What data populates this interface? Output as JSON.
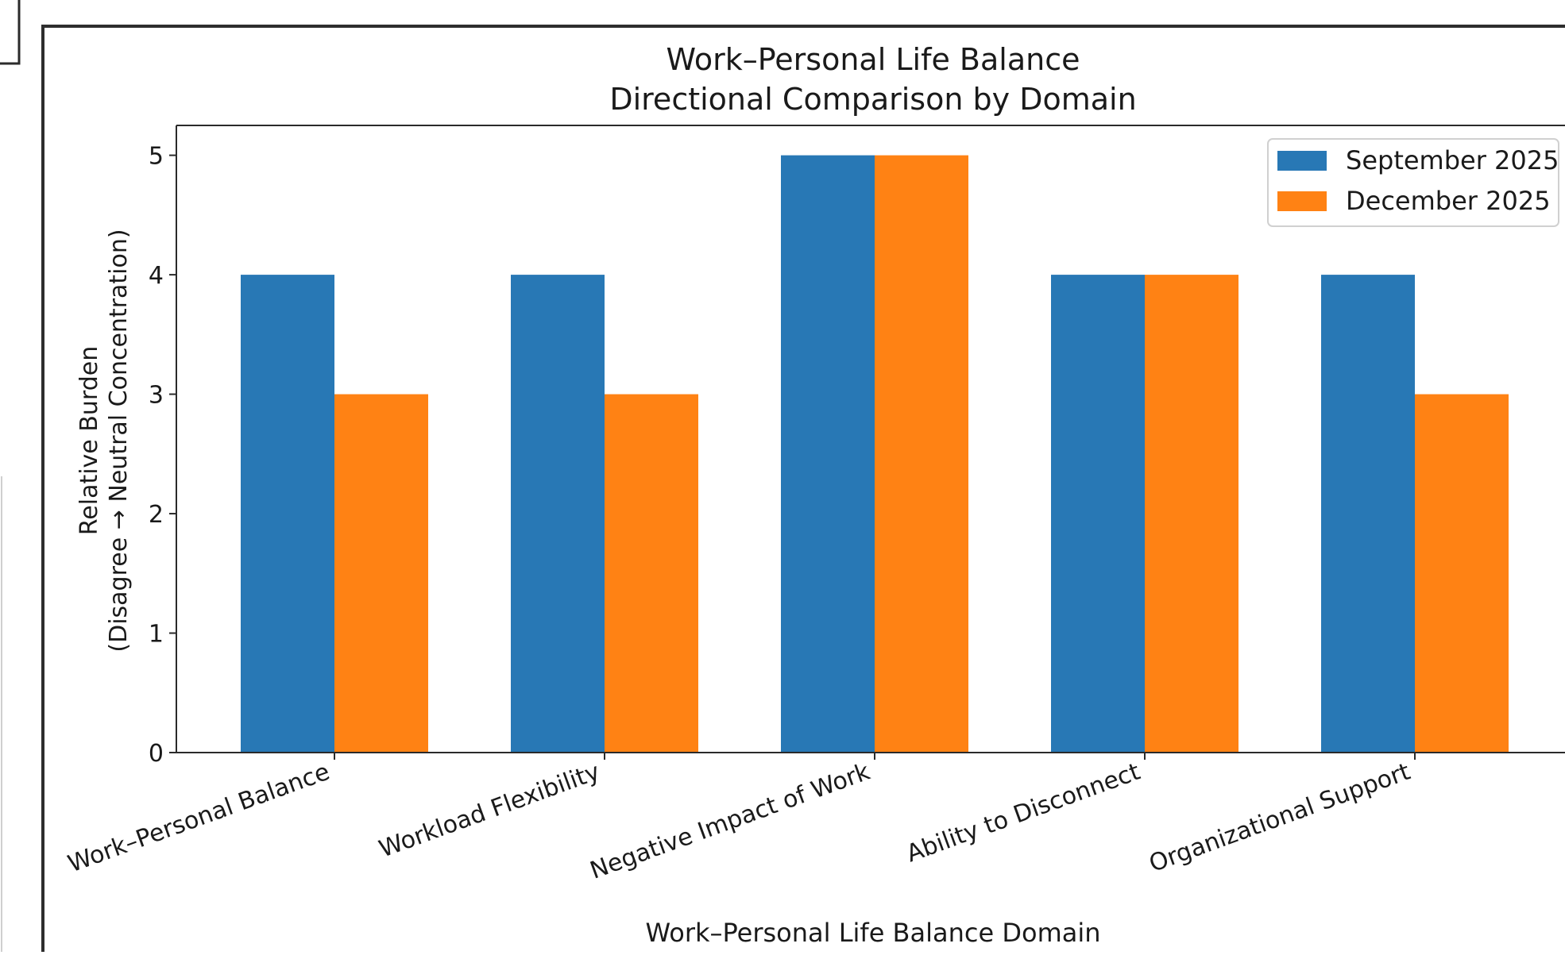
{
  "chart_data": {
    "type": "bar",
    "title": "Work–Personal Life Balance",
    "subtitle": "Directional Comparison by Domain",
    "xlabel": "Work–Personal Life Balance Domain",
    "ylabel": "Relative Burden",
    "ylabel_sub": "(Disagree → Neutral Concentration)",
    "ylim": [
      0,
      5.25
    ],
    "yticks": [
      0,
      1,
      2,
      3,
      4,
      5
    ],
    "categories": [
      "Work–Personal Balance",
      "Workload Flexibility",
      "Negative Impact of Work",
      "Ability to Disconnect",
      "Organizational Support"
    ],
    "series": [
      {
        "name": "September 2025",
        "color": "#2878b5",
        "values": [
          4,
          4,
          5,
          4,
          4
        ]
      },
      {
        "name": "December 2025",
        "color": "#ff8214",
        "values": [
          3,
          3,
          5,
          4,
          3
        ]
      }
    ],
    "legend_position": "top-right",
    "grid": false
  }
}
